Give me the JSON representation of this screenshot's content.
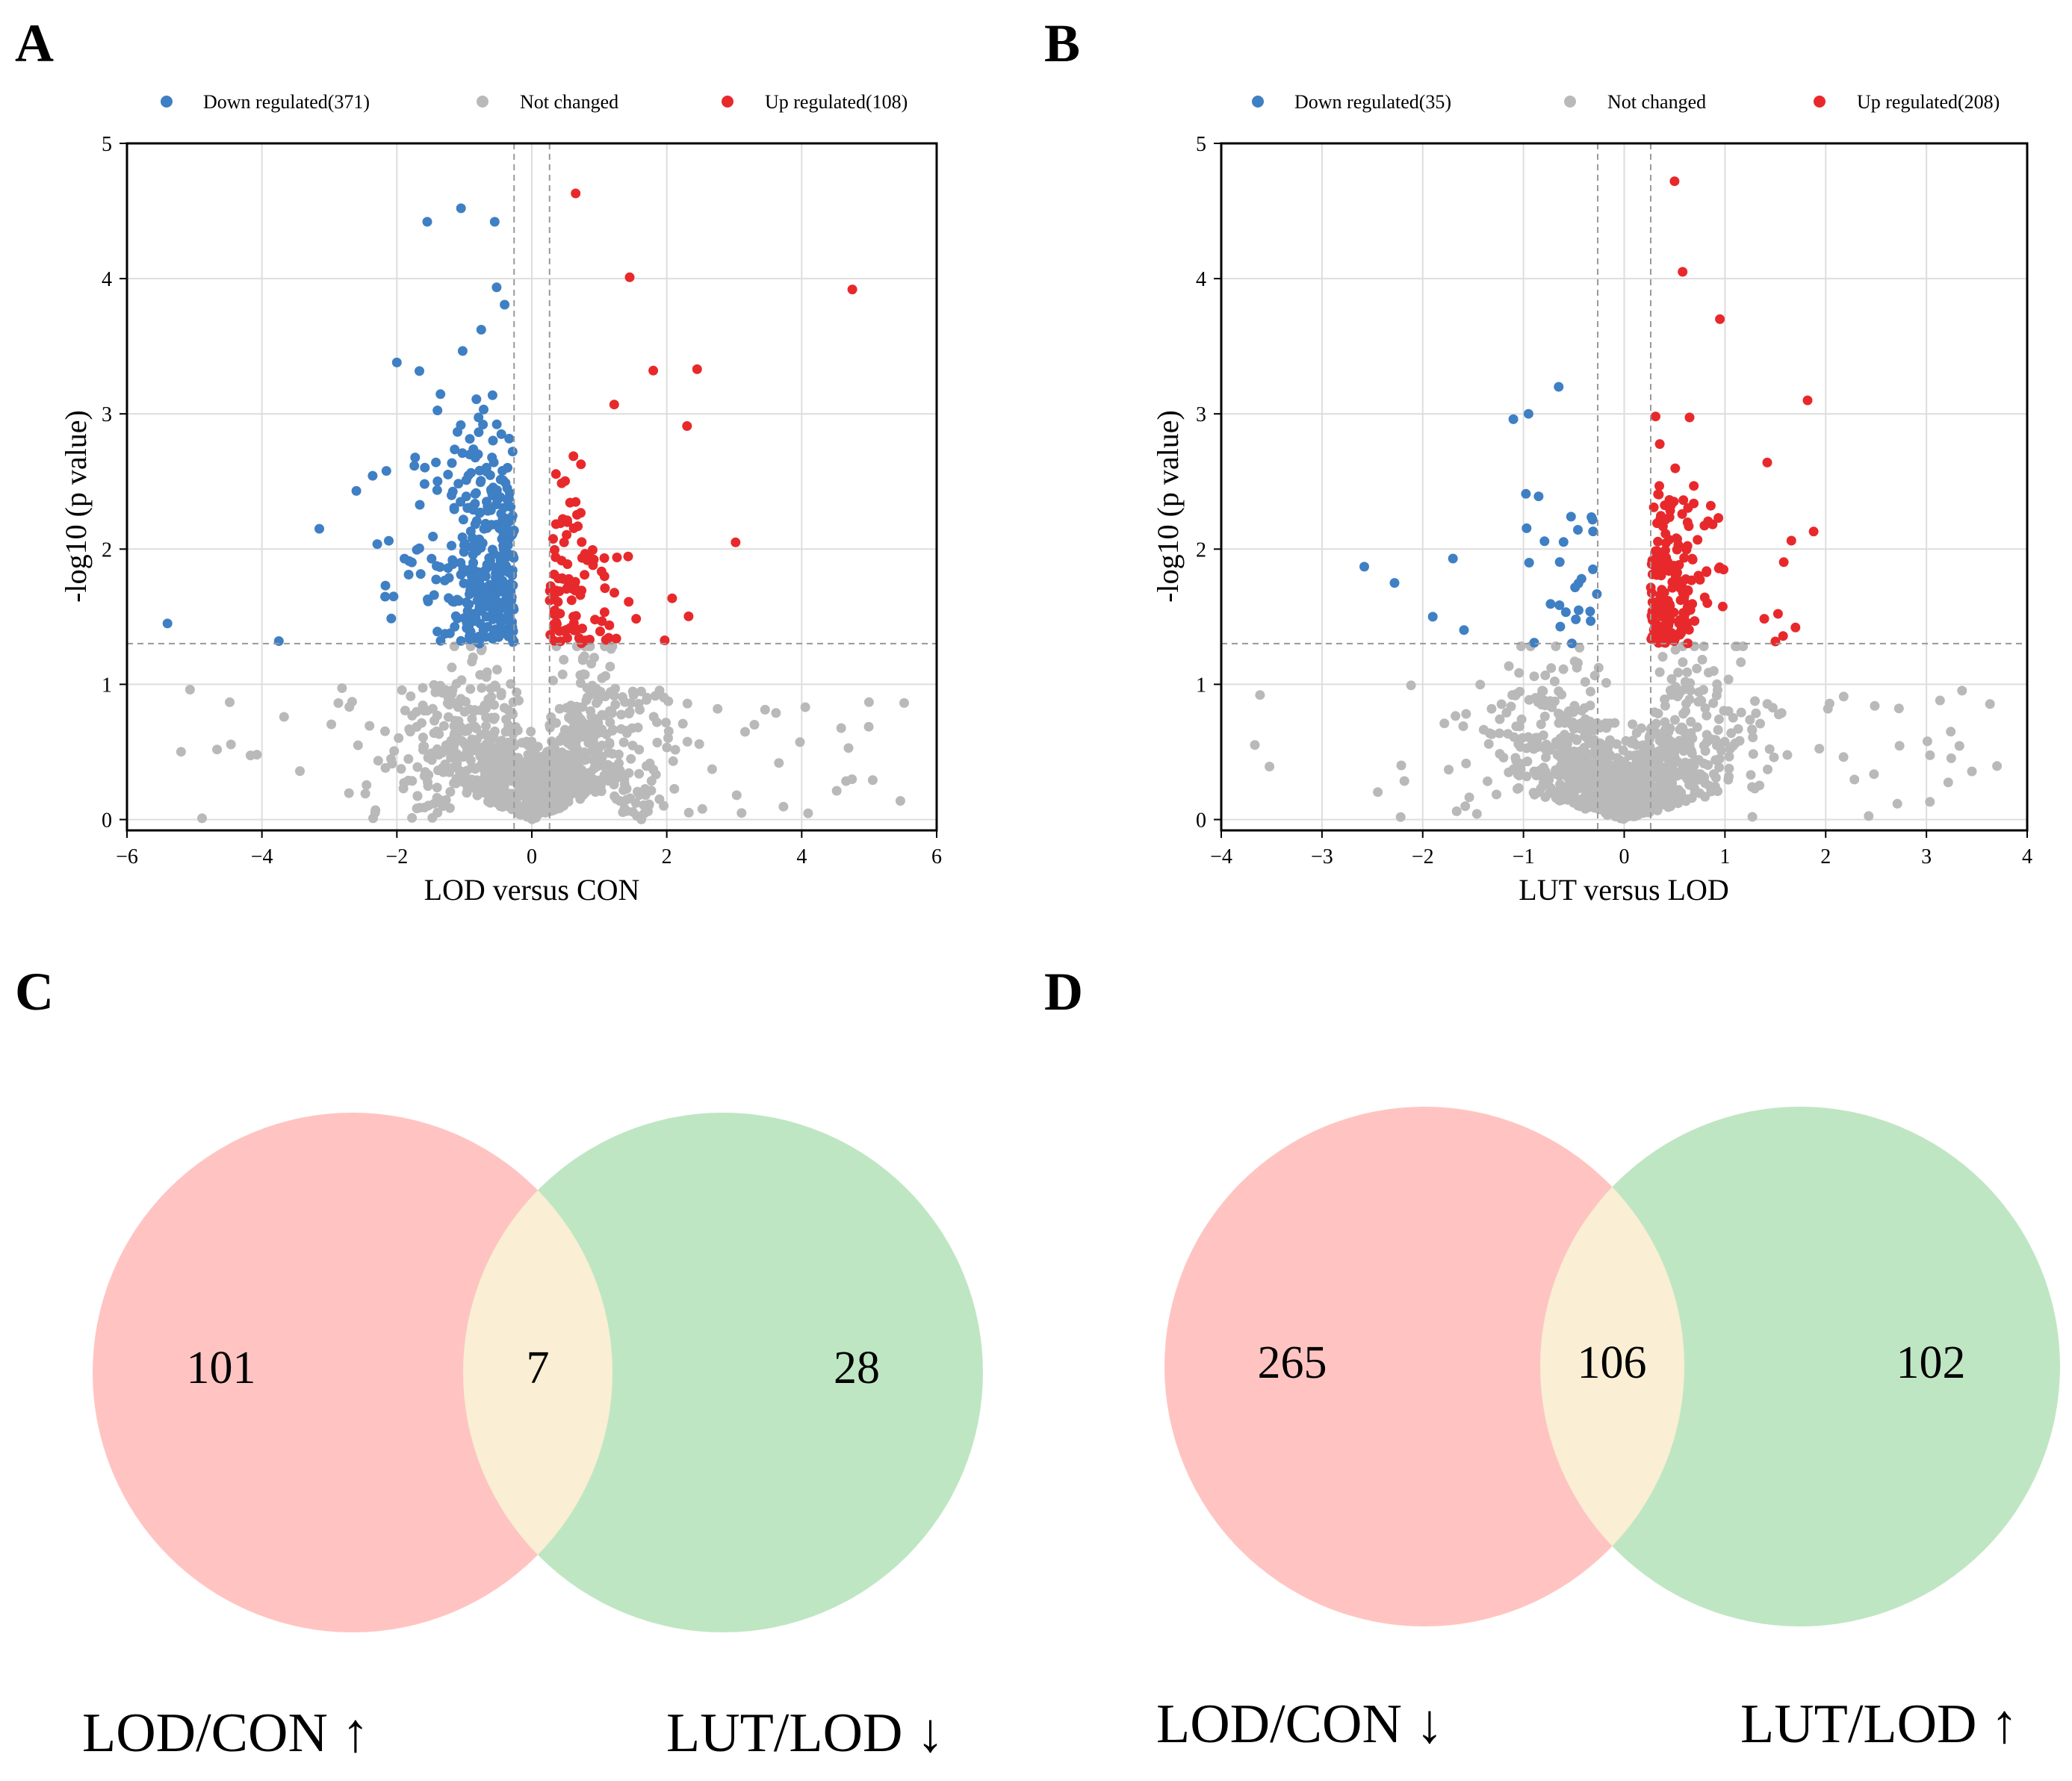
{
  "figure": {
    "panels": [
      "A",
      "B",
      "C",
      "D"
    ]
  },
  "colors": {
    "down": "#3f7fc4",
    "not_changed": "#b9b9b9",
    "up": "#e8292c",
    "venn_left": "#ffc4c1",
    "venn_right": "#bfe6c3",
    "venn_overlap": "#faeed4",
    "grid": "#dddddd",
    "threshold": "#999999"
  },
  "chart_data": [
    {
      "type": "scatter",
      "panel": "A",
      "title": "",
      "xlabel": "LOD versus CON",
      "ylabel": "-log10 (p value)",
      "xlim": [
        -6,
        6
      ],
      "ylim": [
        -0.08,
        5
      ],
      "xticks": [
        -6,
        -4,
        -2,
        0,
        2,
        4,
        6
      ],
      "yticks": [
        0,
        1,
        2,
        3,
        4,
        5
      ],
      "grid": true,
      "legend_position": "top",
      "fc_threshold": 0.263,
      "p_threshold": 1.301,
      "series": [
        {
          "name": "Down regulated(371)",
          "key": "down",
          "count": 371
        },
        {
          "name": "Not changed",
          "key": "not_changed",
          "count": 1000
        },
        {
          "name": "Up regulated(108)",
          "key": "up",
          "count": 108
        }
      ],
      "highlighted_points": [
        {
          "x": 4.75,
          "y": 3.92,
          "group": "up"
        },
        {
          "x": 0.65,
          "y": 4.63,
          "group": "up"
        },
        {
          "x": 1.45,
          "y": 4.01,
          "group": "up"
        },
        {
          "x": 2.45,
          "y": 3.33,
          "group": "up"
        },
        {
          "x": 2.3,
          "y": 2.91,
          "group": "up"
        },
        {
          "x": 3.02,
          "y": 2.05,
          "group": "up"
        },
        {
          "x": 1.8,
          "y": 3.32,
          "group": "up"
        },
        {
          "x": -5.4,
          "y": 1.45,
          "group": "down"
        },
        {
          "x": -3.75,
          "y": 1.32,
          "group": "down"
        },
        {
          "x": -1.55,
          "y": 4.42,
          "group": "down"
        },
        {
          "x": -1.05,
          "y": 4.52,
          "group": "down"
        },
        {
          "x": -0.55,
          "y": 4.42,
          "group": "down"
        },
        {
          "x": -3.15,
          "y": 2.15,
          "group": "down"
        },
        {
          "x": -2.6,
          "y": 2.43,
          "group": "down"
        },
        {
          "x": -2.0,
          "y": 3.38,
          "group": "down"
        }
      ]
    },
    {
      "type": "scatter",
      "panel": "B",
      "title": "",
      "xlabel": "LUT versus LOD",
      "ylabel": "-log10 (p value)",
      "xlim": [
        -4,
        4
      ],
      "ylim": [
        -0.08,
        5
      ],
      "xticks": [
        -4,
        -3,
        -2,
        -1,
        0,
        1,
        2,
        3,
        4
      ],
      "yticks": [
        0,
        1,
        2,
        3,
        4,
        5
      ],
      "grid": true,
      "legend_position": "top",
      "fc_threshold": 0.263,
      "p_threshold": 1.301,
      "series": [
        {
          "name": "Down regulated(35)",
          "key": "down",
          "count": 35
        },
        {
          "name": "Not changed",
          "key": "not_changed",
          "count": 1000
        },
        {
          "name": "Up regulated(208)",
          "key": "up",
          "count": 208
        }
      ],
      "highlighted_points": [
        {
          "x": 0.5,
          "y": 4.72,
          "group": "up"
        },
        {
          "x": 0.58,
          "y": 4.05,
          "group": "up"
        },
        {
          "x": 0.95,
          "y": 3.7,
          "group": "up"
        },
        {
          "x": 1.82,
          "y": 3.1,
          "group": "up"
        },
        {
          "x": 1.42,
          "y": 2.64,
          "group": "up"
        },
        {
          "x": 1.88,
          "y": 2.13,
          "group": "up"
        },
        {
          "x": 1.7,
          "y": 1.42,
          "group": "up"
        },
        {
          "x": -0.65,
          "y": 3.2,
          "group": "down"
        },
        {
          "x": -1.1,
          "y": 2.96,
          "group": "down"
        },
        {
          "x": -0.95,
          "y": 3.0,
          "group": "down"
        },
        {
          "x": -2.58,
          "y": 1.87,
          "group": "down"
        },
        {
          "x": -2.28,
          "y": 1.75,
          "group": "down"
        },
        {
          "x": -1.9,
          "y": 1.5,
          "group": "down"
        },
        {
          "x": -1.7,
          "y": 1.93,
          "group": "down"
        },
        {
          "x": -0.85,
          "y": 2.39,
          "group": "down"
        }
      ]
    },
    {
      "type": "venn",
      "panel": "C",
      "sets": [
        {
          "label": "LOD/CON ↑",
          "only": 101
        },
        {
          "label": "LUT/LOD ↓",
          "only": 28
        }
      ],
      "intersection": 7
    },
    {
      "type": "venn",
      "panel": "D",
      "sets": [
        {
          "label": "LOD/CON ↓",
          "only": 265
        },
        {
          "label": "LUT/LOD ↑",
          "only": 102
        }
      ],
      "intersection": 106
    }
  ]
}
